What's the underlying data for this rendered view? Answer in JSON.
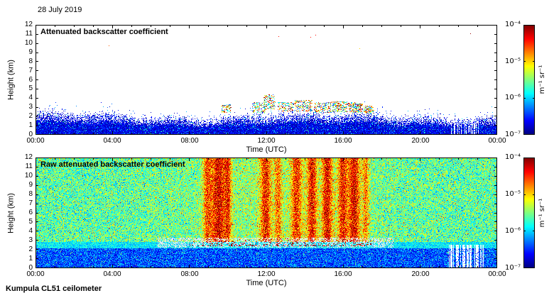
{
  "window": {
    "date_label": "28 July 2019",
    "footer_label": "Kumpula CL51 ceilometer"
  },
  "chart_data": [
    {
      "type": "heatmap",
      "title": "Attenuated backscatter coefficient",
      "xlabel": "Time (UTC)",
      "ylabel": "Height (km)",
      "x_range_hours": [
        0,
        24
      ],
      "x_tick_hours": [
        0,
        4,
        8,
        12,
        16,
        20,
        24
      ],
      "x_tick_labels": [
        "00:00",
        "04:00",
        "08:00",
        "12:00",
        "16:00",
        "20:00",
        "00:00"
      ],
      "y_range_km": [
        0,
        12
      ],
      "y_tick_labels": [
        "0",
        "1",
        "2",
        "3",
        "4",
        "5",
        "6",
        "7",
        "8",
        "9",
        "10",
        "11",
        "12"
      ],
      "colormap": "jet",
      "background": "#ffffff",
      "grid": false,
      "colorbar": {
        "label": "m⁻¹ sr⁻¹",
        "scale": "log",
        "range_min": "10⁻⁷",
        "range_max": "10⁻⁴",
        "tick_labels": [
          "10⁻⁴",
          "10⁻⁵",
          "10⁻⁶",
          "10⁻⁷"
        ]
      },
      "content": {
        "summary": "Dense blue boundary-layer speckle below about 2-3 km all day; scattered multicolour cloud/aerosol specks at 2.5-4.5 km between roughly 10:00 and 18:00 UTC; clear white air above; short white data gaps near 21:30-23:15 UTC in the low-level band.",
        "seed": 20190728,
        "bl_base": 2.15,
        "bl_amp": 0.35,
        "bl_jitter": 0.55,
        "gaps": {
          "t0": 21.4,
          "t1": 23.2,
          "h_max": 1.7,
          "prob": 0.38
        },
        "high_specks": 7,
        "speck_clusters": [
          {
            "t": 9.9,
            "w": 0.25,
            "h": 2.9,
            "hw": 0.45,
            "n": 90
          },
          {
            "t": 11.6,
            "w": 0.35,
            "h": 3.0,
            "hw": 0.6,
            "n": 120
          },
          {
            "t": 12.15,
            "w": 0.3,
            "h": 3.6,
            "hw": 0.8,
            "n": 150
          },
          {
            "t": 13.0,
            "w": 0.4,
            "h": 3.1,
            "hw": 0.5,
            "n": 130
          },
          {
            "t": 13.9,
            "w": 0.45,
            "h": 3.2,
            "hw": 0.6,
            "n": 170
          },
          {
            "t": 14.9,
            "w": 0.45,
            "h": 3.0,
            "hw": 0.55,
            "n": 170
          },
          {
            "t": 15.8,
            "w": 0.4,
            "h": 3.1,
            "hw": 0.6,
            "n": 180
          },
          {
            "t": 16.6,
            "w": 0.35,
            "h": 3.0,
            "hw": 0.55,
            "n": 190
          },
          {
            "t": 17.3,
            "w": 0.25,
            "h": 2.8,
            "hw": 0.4,
            "n": 110
          }
        ]
      }
    },
    {
      "type": "heatmap",
      "title": "Raw attenuated backscatter coefficient",
      "xlabel": "Time (UTC)",
      "ylabel": "Height (km)",
      "x_range_hours": [
        0,
        24
      ],
      "x_tick_hours": [
        0,
        4,
        8,
        12,
        16,
        20,
        24
      ],
      "x_tick_labels": [
        "00:00",
        "04:00",
        "08:00",
        "12:00",
        "16:00",
        "20:00",
        "00:00"
      ],
      "y_range_km": [
        0,
        12
      ],
      "y_tick_labels": [
        "0",
        "1",
        "2",
        "3",
        "4",
        "5",
        "6",
        "7",
        "8",
        "9",
        "10",
        "11",
        "12"
      ],
      "colormap": "jet",
      "background": "#ffffff",
      "grid": false,
      "colorbar": {
        "label": "m⁻¹ sr⁻¹",
        "scale": "log",
        "range_min": "10⁻⁷",
        "range_max": "10⁻⁴",
        "tick_labels": [
          "10⁻⁴",
          "10⁻⁵",
          "10⁻⁶",
          "10⁻⁷"
        ]
      },
      "content": {
        "summary": "Noisy green/cyan raw-signal background at all heights; stronger yellow-orange daytime noise with vertical red streaks near 08:50-10:05, 12:00 and 13:30-16:40 UTC; dark-blue low-noise band below about 2.2 km; pale grey layer with dark-red cloud-base dots at 2.5-3.3 km between about 08:00 and 17:30 UTC; white data gaps near 21:30-23:20 UTC below about 2.6 km.",
        "seed": 728,
        "base_v": 0.46,
        "noise_v": 0.3,
        "day_boost": {
          "center": 12.8,
          "width": 5.2,
          "amp": 0.07
        },
        "streaks": [
          {
            "t": 8.9,
            "w": 0.15,
            "s": 0.26
          },
          {
            "t": 9.5,
            "w": 0.3,
            "s": 0.4
          },
          {
            "t": 10.0,
            "w": 0.12,
            "s": 0.24
          },
          {
            "t": 11.95,
            "w": 0.2,
            "s": 0.34
          },
          {
            "t": 12.6,
            "w": 0.13,
            "s": 0.24
          },
          {
            "t": 13.55,
            "w": 0.2,
            "s": 0.32
          },
          {
            "t": 14.35,
            "w": 0.18,
            "s": 0.36
          },
          {
            "t": 15.15,
            "w": 0.2,
            "s": 0.38
          },
          {
            "t": 15.95,
            "w": 0.18,
            "s": 0.34
          },
          {
            "t": 16.55,
            "w": 0.22,
            "s": 0.4
          },
          {
            "t": 17.15,
            "w": 0.12,
            "s": 0.24
          }
        ],
        "surface_band": {
          "h_top": 2.2,
          "v0": 0.07,
          "v1": 0.33
        },
        "light_band": {
          "t0": 6.3,
          "t1": 18.6,
          "h0": 2.3,
          "h1": 3.35,
          "prob": 0.45
        },
        "cloudbase_dots": {
          "t0": 8.0,
          "t1": 17.6,
          "h0": 2.45,
          "h1": 3.3,
          "count": 260
        },
        "gaps": {
          "t0": 21.4,
          "t1": 23.3,
          "h_max": 2.6,
          "prob": 0.45
        }
      }
    }
  ]
}
